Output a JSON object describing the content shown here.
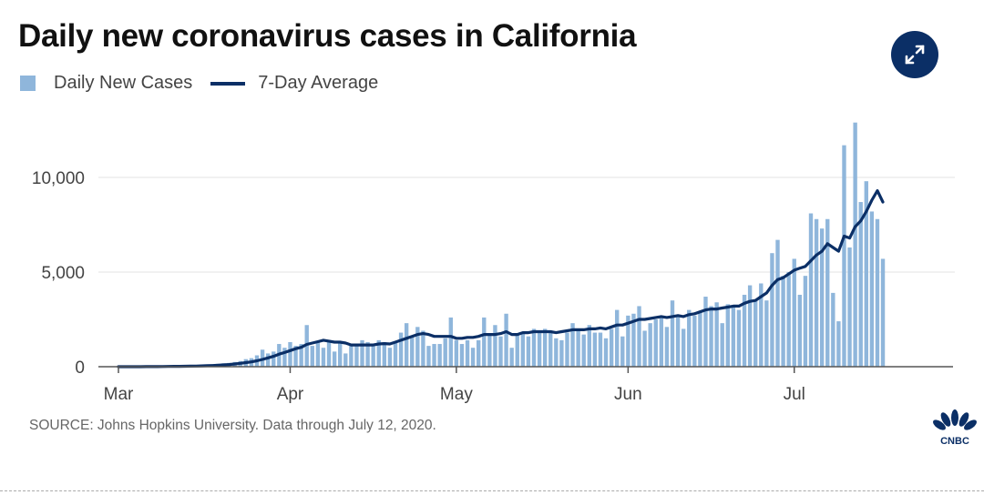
{
  "title": "Daily new coronavirus cases in California",
  "legend": {
    "bars_label": "Daily New Cases",
    "line_label": "7-Day Average"
  },
  "source": "SOURCE: Johns Hopkins University. Data through July 12, 2020.",
  "logo_text": "CNBC",
  "icons": {
    "expand": "expand-arrows-icon",
    "logo": "cnbc-peacock-icon"
  },
  "colors": {
    "bar": "#8fb6db",
    "line": "#0b2f66",
    "grid": "#e3e3e3",
    "axis": "#555555"
  },
  "chart_data": {
    "type": "bar",
    "title": "Daily new coronavirus cases in California",
    "xlabel": "",
    "ylabel": "",
    "ylim": [
      0,
      13000
    ],
    "yticks": [
      0,
      5000,
      10000
    ],
    "ytick_labels": [
      "0",
      "5,000",
      "10,000"
    ],
    "x_start": "2020-03-01",
    "x_end": "2020-07-12",
    "xticks": [
      {
        "label": "Mar",
        "day": 0
      },
      {
        "label": "Apr",
        "day": 31
      },
      {
        "label": "May",
        "day": 61
      },
      {
        "label": "Jun",
        "day": 92
      },
      {
        "label": "Jul",
        "day": 122
      }
    ],
    "series": [
      {
        "name": "Daily New Cases",
        "type": "bar",
        "values": [
          0,
          0,
          0,
          5,
          0,
          10,
          15,
          0,
          20,
          25,
          30,
          30,
          40,
          50,
          60,
          80,
          100,
          120,
          150,
          180,
          200,
          250,
          300,
          400,
          450,
          600,
          900,
          700,
          800,
          1200,
          1000,
          1300,
          1100,
          1200,
          2200,
          1100,
          1300,
          1000,
          1400,
          800,
          1300,
          700,
          1100,
          1200,
          1400,
          1300,
          1200,
          1400,
          1300,
          1000,
          1300,
          1800,
          2300,
          1600,
          2100,
          1900,
          1100,
          1200,
          1200,
          1500,
          2600,
          1400,
          1200,
          1400,
          1000,
          1400,
          2600,
          1700,
          2200,
          1600,
          2800,
          1000,
          1700,
          1800,
          1600,
          2000,
          1900,
          2000,
          1800,
          1500,
          1400,
          1800,
          2300,
          2000,
          1700,
          2200,
          1800,
          1800,
          1500,
          2000,
          3000,
          1600,
          2700,
          2800,
          3200,
          1900,
          2300,
          2500,
          2600,
          2100,
          3500,
          2700,
          2000,
          3000,
          2700,
          2900,
          3700,
          3200,
          3400,
          2300,
          3300,
          3200,
          3000,
          3800,
          4300,
          3500,
          4400,
          3500,
          6000,
          6700,
          4800,
          5000,
          5700,
          3800,
          4800,
          8100,
          7800,
          7300,
          7800,
          3900,
          2400,
          11700,
          6300,
          12900,
          8700,
          9800,
          8200,
          7800,
          5700
        ],
        "tick_offset_bars": 5
      },
      {
        "name": "7-Day Average",
        "type": "line",
        "values": [
          0,
          0,
          0,
          1,
          1,
          4,
          5,
          6,
          10,
          14,
          17,
          20,
          25,
          29,
          33,
          41,
          51,
          63,
          79,
          97,
          116,
          146,
          178,
          216,
          254,
          314,
          386,
          464,
          550,
          664,
          750,
          850,
          950,
          1025,
          1180,
          1250,
          1320,
          1400,
          1350,
          1300,
          1300,
          1250,
          1150,
          1150,
          1150,
          1150,
          1150,
          1200,
          1220,
          1200,
          1300,
          1400,
          1500,
          1600,
          1700,
          1750,
          1700,
          1600,
          1600,
          1600,
          1600,
          1500,
          1500,
          1550,
          1550,
          1600,
          1700,
          1700,
          1700,
          1750,
          1850,
          1700,
          1700,
          1800,
          1800,
          1850,
          1850,
          1850,
          1850,
          1800,
          1850,
          1900,
          1950,
          1950,
          1950,
          2000,
          2000,
          2050,
          2000,
          2100,
          2200,
          2200,
          2300,
          2400,
          2500,
          2500,
          2550,
          2600,
          2650,
          2600,
          2650,
          2700,
          2650,
          2750,
          2800,
          2900,
          3000,
          3050,
          3050,
          3100,
          3150,
          3200,
          3200,
          3350,
          3450,
          3500,
          3700,
          3900,
          4300,
          4600,
          4700,
          4900,
          5100,
          5200,
          5300,
          5600,
          5900,
          6100,
          6500,
          6300,
          6100,
          6900,
          6800,
          7400,
          7700,
          8200,
          8800,
          9300,
          8700
        ],
        "tick_offset_bars": 5
      }
    ]
  }
}
